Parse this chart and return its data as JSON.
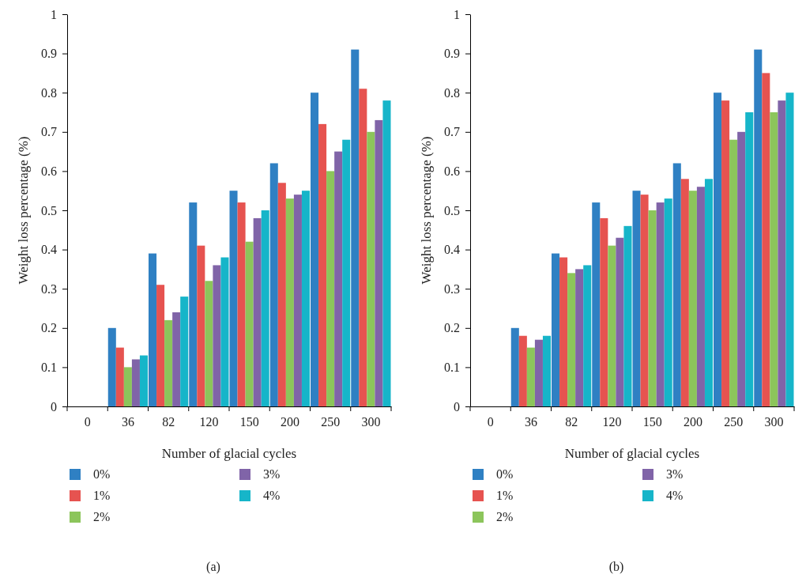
{
  "chart_data": [
    {
      "type": "bar",
      "xlabel": "Number of glacial cycles",
      "ylabel": "Weight loss percentage (%)",
      "categories": [
        "0",
        "36",
        "82",
        "120",
        "150",
        "200",
        "250",
        "300"
      ],
      "ylim": [
        0,
        1
      ],
      "yticks": [
        0,
        0.1,
        0.2,
        0.3,
        0.4,
        0.5,
        0.6,
        0.7,
        0.8,
        0.9,
        1
      ],
      "grid": false,
      "legend": "bottom",
      "annotations": [
        "(a)"
      ],
      "series": [
        {
          "name": "0%",
          "color": "#2f80c3",
          "values": [
            0,
            0.2,
            0.39,
            0.52,
            0.55,
            0.62,
            0.8,
            0.91
          ]
        },
        {
          "name": "1%",
          "color": "#e65350",
          "values": [
            0,
            0.15,
            0.31,
            0.41,
            0.52,
            0.57,
            0.72,
            0.81
          ]
        },
        {
          "name": "2%",
          "color": "#8cc55b",
          "values": [
            0,
            0.1,
            0.22,
            0.32,
            0.42,
            0.53,
            0.6,
            0.7
          ]
        },
        {
          "name": "3%",
          "color": "#8064a8",
          "values": [
            0,
            0.12,
            0.24,
            0.36,
            0.48,
            0.54,
            0.65,
            0.73
          ]
        },
        {
          "name": "4%",
          "color": "#16b5c9",
          "values": [
            0,
            0.13,
            0.28,
            0.38,
            0.5,
            0.55,
            0.68,
            0.78
          ]
        }
      ]
    },
    {
      "type": "bar",
      "xlabel": "Number of glacial cycles",
      "ylabel": "Weight loss percentage (%)",
      "categories": [
        "0",
        "36",
        "82",
        "120",
        "150",
        "200",
        "250",
        "300"
      ],
      "ylim": [
        0,
        1
      ],
      "yticks": [
        0,
        0.1,
        0.2,
        0.3,
        0.4,
        0.5,
        0.6,
        0.7,
        0.8,
        0.9,
        1
      ],
      "grid": false,
      "legend": "bottom",
      "annotations": [
        "(b)"
      ],
      "series": [
        {
          "name": "0%",
          "color": "#2f80c3",
          "values": [
            0,
            0.2,
            0.39,
            0.52,
            0.55,
            0.62,
            0.8,
            0.91
          ]
        },
        {
          "name": "1%",
          "color": "#e65350",
          "values": [
            0,
            0.18,
            0.38,
            0.48,
            0.54,
            0.58,
            0.78,
            0.85
          ]
        },
        {
          "name": "2%",
          "color": "#8cc55b",
          "values": [
            0,
            0.15,
            0.34,
            0.41,
            0.5,
            0.55,
            0.68,
            0.75
          ]
        },
        {
          "name": "3%",
          "color": "#8064a8",
          "values": [
            0,
            0.17,
            0.35,
            0.43,
            0.52,
            0.56,
            0.7,
            0.78
          ]
        },
        {
          "name": "4%",
          "color": "#16b5c9",
          "values": [
            0,
            0.18,
            0.36,
            0.46,
            0.53,
            0.58,
            0.75,
            0.8
          ]
        }
      ]
    }
  ]
}
